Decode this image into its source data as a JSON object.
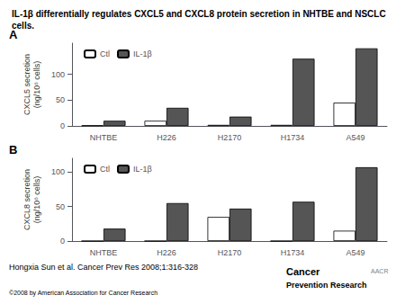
{
  "chart_data": [
    {
      "type": "bar",
      "title": "IL-1β differentially regulates CXCL5 and CXCL8 protein secretion in NHTBE and NSCLC cells.",
      "annotations": [
        "A"
      ],
      "categories": [
        "NHTBE",
        "H226",
        "H2170",
        "H1734",
        "A549"
      ],
      "series": [
        {
          "name": "Ctl",
          "color": "white",
          "values": [
            1,
            10,
            2,
            2,
            45
          ]
        },
        {
          "name": "IL-1β",
          "color": "#555555",
          "values": [
            10,
            35,
            18,
            130,
            150
          ]
        }
      ],
      "ylabel": "CXCL5 secretion\n(ng/10⁶ cells)",
      "ylim": [
        0,
        160
      ],
      "yticks": [
        0,
        50,
        100
      ],
      "grid": false,
      "legend": "upper left"
    },
    {
      "type": "bar",
      "annotations": [
        "B",
        "Hongxia Sun et al. Cancer Prev Res 2008;1:316-328",
        "©2008 by American Association for Cancer Research",
        "Cancer",
        "Prevention Research",
        "AACR"
      ],
      "categories": [
        "NHTBE",
        "H226",
        "H2170",
        "H1734",
        "A549"
      ],
      "series": [
        {
          "name": "Ctl",
          "color": "white",
          "values": [
            0,
            0,
            35,
            0,
            15
          ]
        },
        {
          "name": "IL-1β",
          "color": "#555555",
          "values": [
            18,
            55,
            47,
            57,
            107
          ]
        }
      ],
      "ylabel": "CXCL8 secretion\n(ng/10⁶ cells)",
      "ylim": [
        0,
        120
      ],
      "yticks": [
        0,
        50,
        100
      ],
      "grid": false,
      "legend": "upper left"
    }
  ]
}
